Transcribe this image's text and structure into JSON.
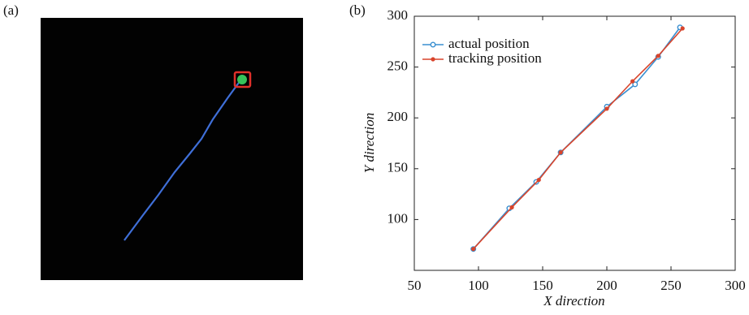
{
  "panel_labels": [
    "(a)",
    "(b)"
  ],
  "chart_data": {
    "type": "line",
    "x_label": "X direction",
    "y_label": "Y direction",
    "xlim": [
      50,
      300
    ],
    "ylim": [
      50,
      300
    ],
    "xticks": [
      50,
      100,
      150,
      200,
      250,
      300
    ],
    "yticks": [
      100,
      150,
      200,
      250,
      300
    ],
    "legend": "upper left",
    "series": [
      {
        "name": "actual position",
        "color": "#3a8fd0",
        "marker": "open-circle",
        "x": [
          96,
          124,
          145,
          164,
          200,
          222,
          240,
          257
        ],
        "values": [
          71,
          111,
          137,
          166,
          211,
          233,
          260,
          289
        ]
      },
      {
        "name": "tracking position",
        "color": "#d9442b",
        "marker": "dot",
        "x": [
          96,
          126,
          147,
          164,
          200,
          220,
          240,
          259
        ],
        "values": [
          71,
          112,
          139,
          166,
          209,
          236,
          261,
          288
        ]
      }
    ]
  }
}
